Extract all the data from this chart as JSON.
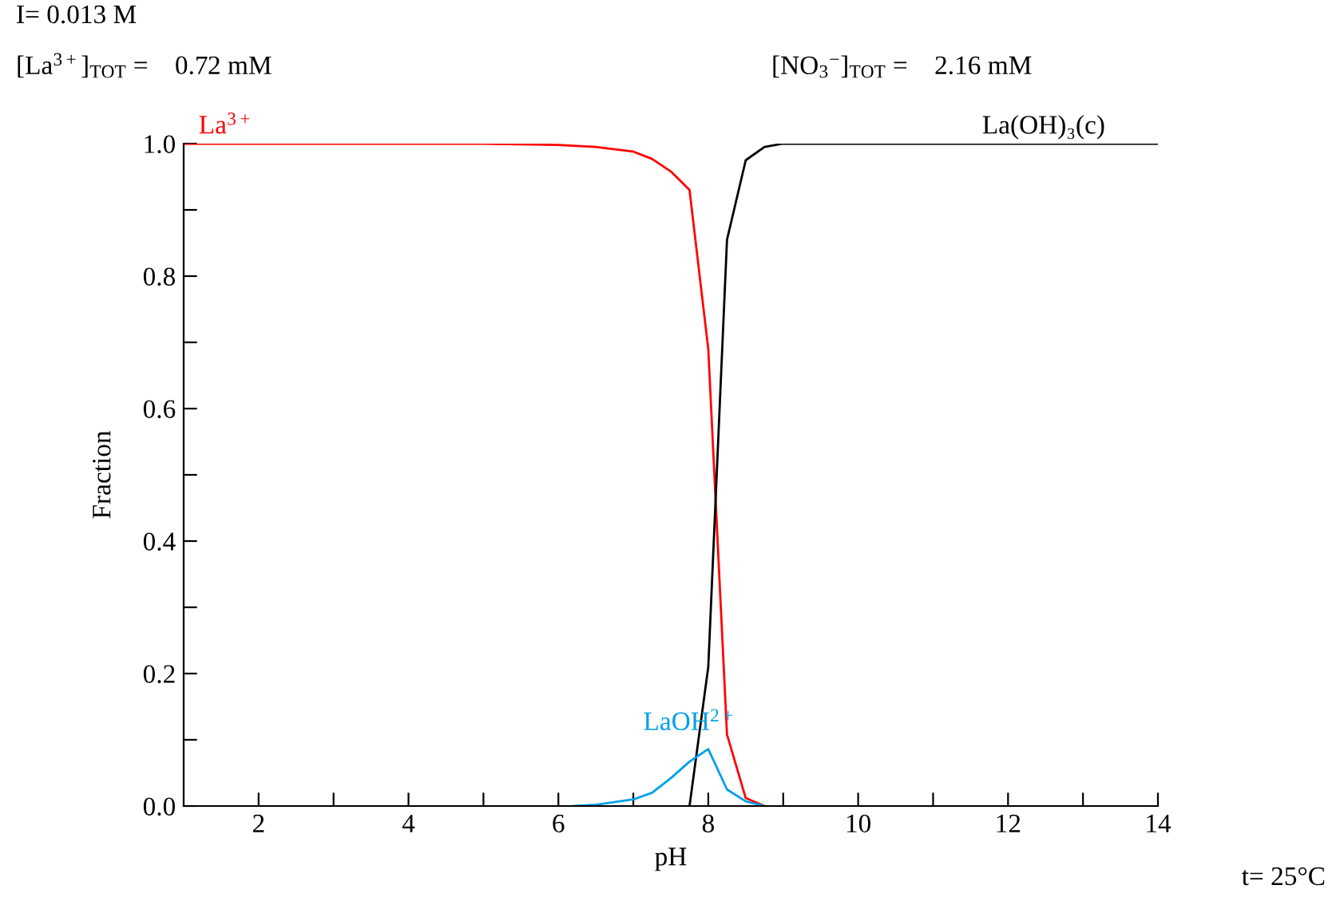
{
  "chart_data": {
    "type": "line",
    "xlabel": "pH",
    "ylabel": "Fraction",
    "xlim": [
      1,
      14
    ],
    "xticks": [
      2,
      {
        "value": 3,
        "label": null
      },
      4,
      {
        "value": 5,
        "label": null
      },
      6,
      {
        "value": 7,
        "label": null
      },
      8,
      {
        "value": 9,
        "label": null
      },
      10,
      {
        "value": 11,
        "label": null
      },
      12,
      {
        "value": 13,
        "label": null
      },
      14
    ],
    "ylim": [
      0,
      1.0
    ],
    "yticks": [
      {
        "value": 0,
        "label": "0.0"
      },
      {
        "value": 0.1,
        "label": null
      },
      {
        "value": 0.2,
        "label": "0.2"
      },
      {
        "value": 0.3,
        "label": null
      },
      {
        "value": 0.4,
        "label": "0.4"
      },
      {
        "value": 0.5,
        "label": null
      },
      {
        "value": 0.6,
        "label": "0.6"
      },
      {
        "value": 0.7,
        "label": null
      },
      {
        "value": 0.8,
        "label": "0.8"
      },
      {
        "value": 0.9,
        "label": null
      },
      {
        "value": 1.0,
        "label": "1.0"
      }
    ],
    "grid": false,
    "legend": false,
    "marker": "none",
    "line_style": "solid",
    "series": [
      {
        "name": "La$^{3+}$",
        "color": "#ff0000",
        "x": [
          1,
          2,
          3,
          4,
          5,
          5.5,
          6,
          6.5,
          7,
          7.25,
          7.5,
          7.75,
          8,
          8.25,
          8.5,
          8.75
        ],
        "values": [
          1.0,
          1.0,
          1.0,
          1.0,
          1.0,
          0.999,
          0.998,
          0.995,
          0.988,
          0.977,
          0.958,
          0.93,
          0.69,
          0.108,
          0.012,
          0.0
        ]
      },
      {
        "name": "La(OH)₃(c)",
        "color": "#000000",
        "x": [
          7.75,
          8,
          8.25,
          8.5,
          8.75,
          9,
          10,
          12,
          14
        ],
        "values": [
          0.0,
          0.21,
          0.855,
          0.975,
          0.995,
          1.0,
          1.0,
          1.0,
          1.0
        ]
      },
      {
        "name": "LaOH$^{2+}$",
        "color": "#00a0e8",
        "x": [
          6.2,
          6.5,
          7,
          7.25,
          7.5,
          7.75,
          8,
          8.25,
          8.5,
          8.75
        ],
        "values": [
          0.0,
          0.002,
          0.01,
          0.02,
          0.042,
          0.067,
          0.086,
          0.025,
          0.007,
          0.0
        ]
      }
    ],
    "annotations": [
      "I= 0.013 M",
      "[La$^{3+}$]$_{TOT}$ =    0.72 mM",
      "[NO$_{3}$$^{−}$]$_{TOT}$ =    2.16 mM",
      "t= 25°C"
    ]
  }
}
